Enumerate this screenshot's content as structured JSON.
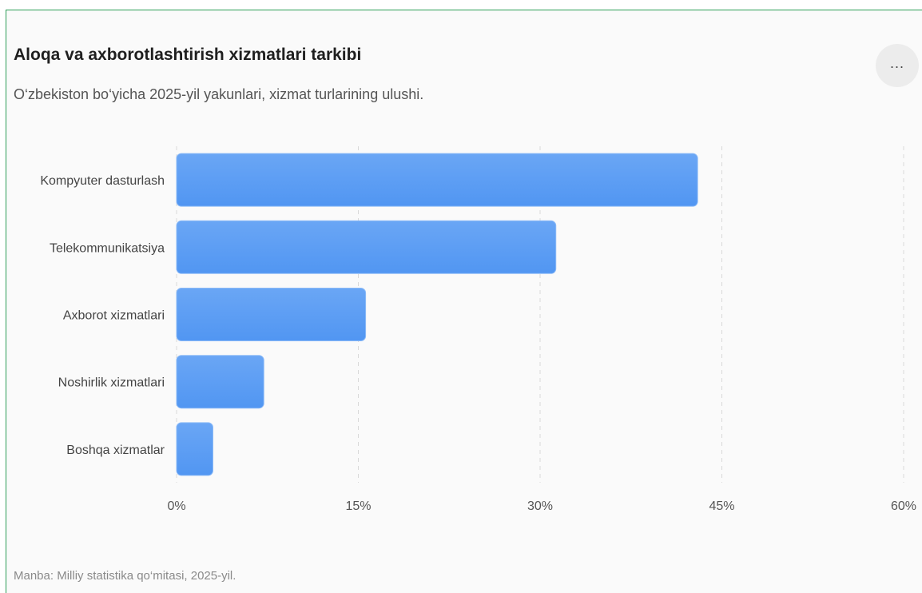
{
  "header": {
    "title": "Aloqa va axborotlashtirish xizmatlari tarkibi",
    "subtitle": "O‘zbekiston bo‘yicha 2025-yil yakunlari, xizmat turlarining ulushi.",
    "menu_label": "..."
  },
  "footer": {
    "source": "Manba: Milliy statistika qo‘mitasi, 2025-yil."
  },
  "colors": {
    "bar_light": "#6aa6f5",
    "bar_dark": "#5196f2",
    "grid": "#d9d9d9",
    "border": "#2e9e57"
  },
  "chart_data": {
    "type": "bar",
    "orientation": "horizontal",
    "categories": [
      "Kompyuter dasturlash",
      "Telekommunikatsiya",
      "Axborot xizmatlari",
      "Noshirlik xizmatlari",
      "Boshqa xizmatlar"
    ],
    "values": [
      43,
      31.3,
      15.6,
      7.2,
      3
    ],
    "unit": "%",
    "xlim": [
      0,
      60
    ],
    "ticks": [
      0,
      15,
      30,
      45,
      60
    ],
    "tick_labels": [
      "0%",
      "15%",
      "30%",
      "45%",
      "60%"
    ],
    "grid": true,
    "grid_style": "dashed",
    "legend": "none"
  }
}
